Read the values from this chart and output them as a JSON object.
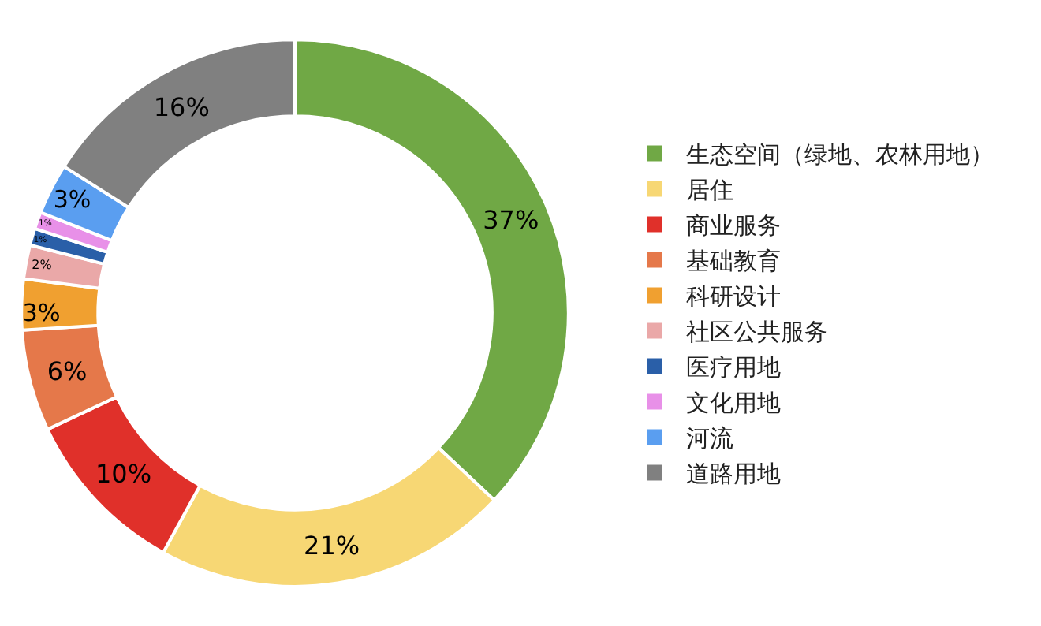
{
  "chart_data": {
    "type": "donut",
    "categories": [
      "生态空间（绿地、农林用地）",
      "居住",
      "商业服务",
      "基础教育",
      "科研设计",
      "社区公共服务",
      "医疗用地",
      "文化用地",
      "河流",
      "道路用地"
    ],
    "values": [
      37,
      21,
      10,
      6,
      3,
      2,
      1,
      1,
      3,
      16
    ],
    "colors": [
      "#70a845",
      "#f7d774",
      "#e0302a",
      "#e5784a",
      "#f0a030",
      "#eaa8a8",
      "#2a5fa8",
      "#e890e8",
      "#5a9ef0",
      "#808080"
    ],
    "value_labels": [
      "37%",
      "21%",
      "10%",
      "6%",
      "3%",
      "2%",
      "1%",
      "1%",
      "3%",
      "16%"
    ],
    "legend": "right"
  }
}
